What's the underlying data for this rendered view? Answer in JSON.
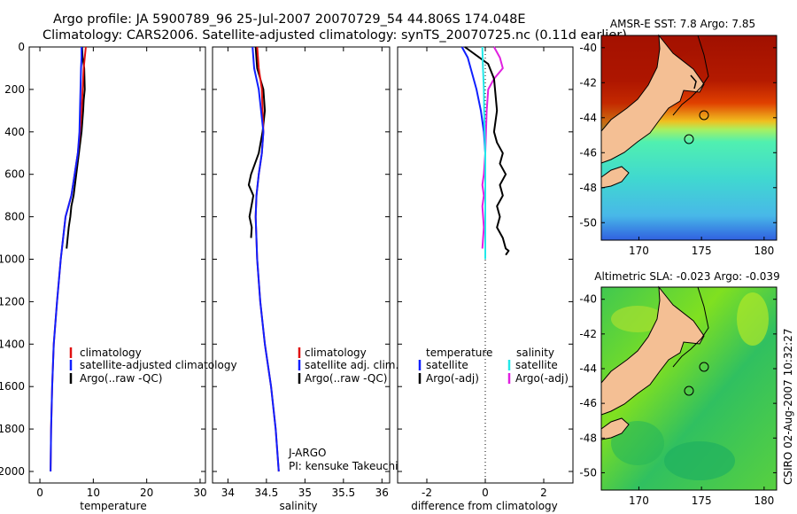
{
  "header": {
    "line1": "Argo profile: JA 5900789_96 25-Jul-2007 20070729_54 44.806S 174.048E",
    "line2": "Climatology: CARS2006. Satellite-adjusted climatology: synTS_20070725.nc (0.11d earlier)"
  },
  "colors": {
    "climatology": "#e01010",
    "satellite": "#1020ff",
    "argo": "#000000",
    "sal_satellite": "#22e8e8",
    "sal_argo": "#e020e0",
    "land": "#f4bf94"
  },
  "chart_data": [
    {
      "id": "temperature",
      "type": "line",
      "xlabel": "temperature",
      "ylabel": "",
      "xlim": [
        -2,
        31
      ],
      "ylim": [
        2050,
        0
      ],
      "xticks": [
        0,
        10,
        20,
        30
      ],
      "xtick_labels": [
        "0",
        "10",
        "20",
        "30"
      ],
      "yticks": [
        0,
        200,
        400,
        600,
        800,
        1000,
        1200,
        1400,
        1600,
        1800,
        2000
      ],
      "ytick_labels": [
        "0",
        "200",
        "400",
        "600",
        "800",
        "1000",
        "1200",
        "1400",
        "1600",
        "1800",
        "2000"
      ],
      "legend": [
        "climatology",
        "satellite-adjusted climatology",
        "Argo(..raw -QC)"
      ],
      "series": [
        {
          "name": "climatology",
          "color_key": "climatology",
          "x": [
            8.6,
            8.4,
            8.2,
            8.0,
            7.8,
            7.5,
            7.1,
            6.5,
            5.9,
            4.8,
            3.9,
            3.2,
            2.6,
            2.3,
            2.1,
            2.0
          ],
          "y": [
            0,
            50,
            100,
            200,
            300,
            400,
            500,
            600,
            700,
            800,
            1000,
            1200,
            1400,
            1600,
            1800,
            2000
          ]
        },
        {
          "name": "satellite-adjusted climatology",
          "color_key": "satellite",
          "x": [
            7.8,
            7.8,
            7.7,
            7.6,
            7.5,
            7.4,
            7.1,
            6.5,
            5.9,
            4.8,
            3.9,
            3.2,
            2.6,
            2.3,
            2.1,
            2.0
          ],
          "y": [
            0,
            50,
            100,
            200,
            300,
            400,
            500,
            600,
            700,
            800,
            1000,
            1200,
            1400,
            1600,
            1800,
            2000
          ]
        },
        {
          "name": "Argo(..raw -QC)",
          "color_key": "argo",
          "x": [
            7.9,
            8.0,
            8.3,
            8.4,
            8.2,
            8.1,
            7.8,
            7.3,
            6.8,
            6.3,
            5.9,
            5.7,
            5.4,
            5.2,
            5.0
          ],
          "y": [
            0,
            50,
            100,
            200,
            250,
            300,
            400,
            500,
            600,
            700,
            750,
            800,
            850,
            900,
            950
          ]
        }
      ]
    },
    {
      "id": "salinity",
      "type": "line",
      "xlabel": "salinity",
      "ylabel": "",
      "xlim": [
        33.8,
        36.1
      ],
      "ylim": [
        2050,
        0
      ],
      "xticks": [
        34,
        34.5,
        35,
        35.5,
        36
      ],
      "xtick_labels": [
        "34",
        "34.5",
        "35",
        "35.5",
        "36"
      ],
      "legend": [
        "climatology",
        "satellite adj. clim.",
        "Argo(..raw -QC)"
      ],
      "annotation": [
        "J-ARGO",
        "PI: kensuke Takeuchi"
      ],
      "series": [
        {
          "name": "climatology",
          "color_key": "climatology",
          "x": [
            34.38,
            34.4,
            34.44,
            34.46,
            34.44,
            34.4,
            34.37,
            34.36,
            34.38,
            34.42,
            34.48,
            34.56,
            34.62,
            34.66
          ],
          "y": [
            0,
            100,
            200,
            400,
            500,
            600,
            700,
            800,
            1000,
            1200,
            1400,
            1600,
            1800,
            2000
          ]
        },
        {
          "name": "satellite adj. clim.",
          "color_key": "satellite",
          "x": [
            34.32,
            34.34,
            34.4,
            34.46,
            34.44,
            34.4,
            34.37,
            34.36,
            34.38,
            34.42,
            34.48,
            34.56,
            34.62,
            34.66
          ],
          "y": [
            0,
            100,
            200,
            400,
            500,
            600,
            700,
            800,
            1000,
            1200,
            1400,
            1600,
            1800,
            2000
          ]
        },
        {
          "name": "Argo(..raw -QC)",
          "color_key": "argo",
          "x": [
            34.36,
            34.38,
            34.46,
            34.48,
            34.45,
            34.4,
            34.3,
            34.27,
            34.33,
            34.28,
            34.31,
            34.3
          ],
          "y": [
            0,
            100,
            200,
            300,
            400,
            500,
            600,
            650,
            700,
            800,
            850,
            900
          ]
        }
      ]
    },
    {
      "id": "difference",
      "type": "line",
      "xlabel": "difference from climatology",
      "ylabel": "",
      "xlim": [
        -3,
        3
      ],
      "ylim": [
        2050,
        0
      ],
      "xticks": [
        -2,
        0,
        2
      ],
      "xtick_labels": [
        "-2",
        "0",
        "2"
      ],
      "legend_left_title": "temperature",
      "legend_right_title": "salinity",
      "legend_left": [
        "satellite",
        "Argo(-adj)"
      ],
      "legend_right": [
        "satellite",
        "Argo(-adj)"
      ],
      "series": [
        {
          "name": "temperature satellite",
          "color_key": "satellite",
          "x": [
            -0.8,
            -0.6,
            -0.5,
            -0.3,
            -0.15,
            -0.05,
            0,
            0
          ],
          "y": [
            0,
            50,
            100,
            200,
            300,
            400,
            500,
            1000
          ]
        },
        {
          "name": "temperature Argo(-adj)",
          "color_key": "argo",
          "x": [
            -0.7,
            0.1,
            0.3,
            0.4,
            0.3,
            0.4,
            0.6,
            0.5,
            0.7,
            0.5,
            0.6,
            0.4,
            0.5,
            0.4,
            0.6,
            0.7,
            0.8,
            0.7
          ],
          "y": [
            0,
            80,
            150,
            300,
            400,
            450,
            500,
            550,
            600,
            650,
            700,
            750,
            800,
            850,
            900,
            950,
            960,
            980
          ]
        },
        {
          "name": "salinity satellite",
          "color_key": "sal_satellite",
          "x": [
            -0.1,
            -0.08,
            -0.05,
            -0.04,
            -0.02,
            0,
            0
          ],
          "y": [
            0,
            100,
            200,
            300,
            400,
            500,
            1000
          ]
        },
        {
          "name": "salinity Argo(-adj)",
          "color_key": "sal_argo",
          "x": [
            0.3,
            0.5,
            0.6,
            0.3,
            0.1,
            0.05,
            0,
            -0.05,
            -0.1,
            -0.05,
            -0.1,
            -0.05,
            -0.1
          ],
          "y": [
            0,
            50,
            100,
            150,
            200,
            300,
            500,
            600,
            650,
            700,
            750,
            850,
            950
          ]
        }
      ],
      "zero_line": 0
    }
  ],
  "maps": [
    {
      "id": "sst",
      "title": "AMSR-E SST: 7.8 Argo: 7.85",
      "xticks": [
        "170",
        "175",
        "180"
      ],
      "yticks": [
        "-40",
        "-42",
        "-44",
        "-46",
        "-48",
        "-50"
      ],
      "field": "sea surface temperature"
    },
    {
      "id": "sla",
      "title": "Altimetric SLA: -0.023 Argo: -0.039",
      "xticks": [
        "170",
        "175",
        "180"
      ],
      "yticks": [
        "-40",
        "-42",
        "-44",
        "-46",
        "-48",
        "-50"
      ],
      "field": "sea level anomaly"
    }
  ],
  "credit": "CSIRO 02-Aug-2007 10:32:27"
}
